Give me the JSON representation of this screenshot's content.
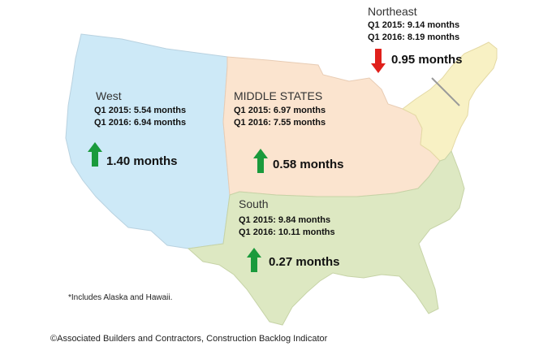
{
  "regions": {
    "west": {
      "name": "West",
      "q1_2015": "Q1 2015:  5.54 months",
      "q1_2016": "Q1 2016:  6.94 months",
      "change": "1.40 months",
      "direction": "up",
      "color": "#cde9f7"
    },
    "middle": {
      "name": "MIDDLE STATES",
      "q1_2015": "Q1 2015:  6.97 months",
      "q1_2016": "Q1 2016:  7.55 months",
      "change": "0.58 months",
      "direction": "up",
      "color": "#fbe4cf"
    },
    "northeast": {
      "name": "Northeast",
      "q1_2015": "Q1 2015:  9.14 months",
      "q1_2016": "Q1 2016:  8.19 months",
      "change": "0.95 months",
      "direction": "down",
      "color": "#f8f1c4"
    },
    "south": {
      "name": "South",
      "q1_2015": "Q1 2015:  9.84 months",
      "q1_2016": "Q1 2016: 10.11 months",
      "change": "0.27 months",
      "direction": "up",
      "color": "#dde8c2"
    }
  },
  "colors": {
    "up_arrow": "#1a9a3c",
    "down_arrow": "#e0201b"
  },
  "footnote": "*Includes Alaska and Hawaii.",
  "credit": "©Associated Builders and Contractors, Construction Backlog Indicator"
}
